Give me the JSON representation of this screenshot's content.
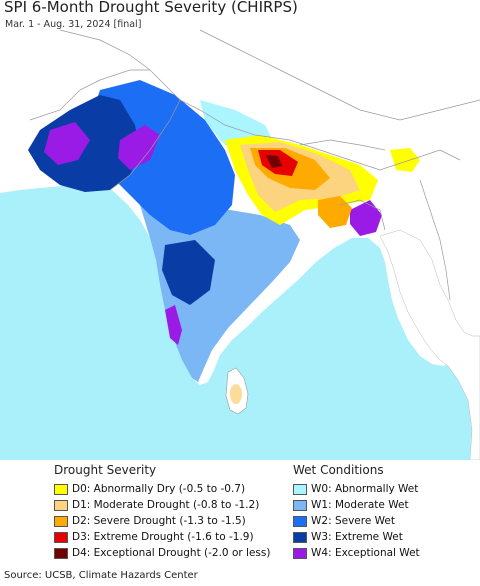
{
  "title": "SPI 6-Month Drought Severity (CHIRPS)",
  "subtitle": "Mar. 1 - Aug. 31, 2024 [final]",
  "drought_legend": {
    "title": "Drought Severity",
    "items": [
      {
        "label": "D0: Abnormally Dry (-0.5 to -0.7)",
        "color": "#ffff00"
      },
      {
        "label": "D1: Moderate Drought (-0.8 to -1.2)",
        "color": "#fcd37f"
      },
      {
        "label": "D2: Severe Drought (-1.3 to -1.5)",
        "color": "#ffaa00"
      },
      {
        "label": "D3: Extreme Drought (-1.6 to -1.9)",
        "color": "#e60000"
      },
      {
        "label": "D4: Exceptional Drought (-2.0 or less)",
        "color": "#730000"
      }
    ]
  },
  "wet_legend": {
    "title": "Wet Conditions",
    "items": [
      {
        "label": "W0: Abnormally Wet",
        "color": "#aaf5ff"
      },
      {
        "label": "W1: Moderate Wet",
        "color": "#7bb6f5"
      },
      {
        "label": "W2: Severe Wet",
        "color": "#1c6ef5"
      },
      {
        "label": "W3: Extreme Wet",
        "color": "#0a3ca5"
      },
      {
        "label": "W4: Exceptional Wet",
        "color": "#9b1be6"
      }
    ]
  },
  "source": "Source: UCSB, Climate Hazards Center",
  "colors": {
    "ocean": "#a9f0fb",
    "land": "#ffffff",
    "border": "#999999"
  }
}
